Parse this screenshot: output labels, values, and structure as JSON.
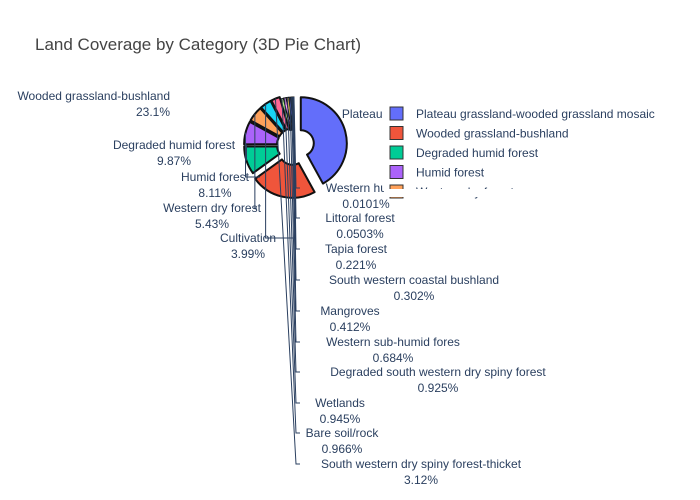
{
  "chart_data": {
    "type": "pie",
    "title": "Land Coverage by Category (3D Pie Chart)",
    "hole": true,
    "pulled_slices": true,
    "slices": [
      {
        "label": "Plateau grassland-wooded grassland mosaic",
        "percent": 42.1,
        "percent_text": "",
        "color": "#636efa",
        "in_legend": true,
        "outside_label": false,
        "inside_text": "Plateau grassland-woo"
      },
      {
        "label": "Wooded grassland-bushland",
        "percent": 23.1,
        "percent_text": "23.1%",
        "color": "#ef553b",
        "in_legend": true,
        "outside_label": true
      },
      {
        "label": "Degraded humid forest",
        "percent": 9.87,
        "percent_text": "9.87%",
        "color": "#00cc96",
        "in_legend": true,
        "outside_label": true
      },
      {
        "label": "Humid forest",
        "percent": 8.11,
        "percent_text": "8.11%",
        "color": "#ab63fa",
        "in_legend": true,
        "outside_label": true
      },
      {
        "label": "Western dry forest",
        "percent": 5.43,
        "percent_text": "5.43%",
        "color": "#ffa15a",
        "in_legend": true,
        "outside_label": true
      },
      {
        "label": "Cultivation",
        "percent": 3.99,
        "percent_text": "3.99%",
        "color": "#19d3f3",
        "in_legend": false,
        "outside_label": true
      },
      {
        "label": "South western dry spiny forest-thicket",
        "percent": 3.12,
        "percent_text": "3.12%",
        "color": "#ff6692",
        "in_legend": false,
        "outside_label": true
      },
      {
        "label": "Bare soil/rock",
        "percent": 0.966,
        "percent_text": "0.966%",
        "color": "#b6e880",
        "in_legend": false,
        "outside_label": true
      },
      {
        "label": "Wetlands",
        "percent": 0.945,
        "percent_text": "0.945%",
        "color": "#ff97ff",
        "in_legend": false,
        "outside_label": true
      },
      {
        "label": "Degraded south western dry spiny forest",
        "percent": 0.925,
        "percent_text": "0.925%",
        "color": "#fecb52",
        "in_legend": false,
        "outside_label": true
      },
      {
        "label": "Western sub-humid fores",
        "percent": 0.684,
        "percent_text": "0.684%",
        "color": "#636efa",
        "in_legend": false,
        "outside_label": true
      },
      {
        "label": "Mangroves",
        "percent": 0.412,
        "percent_text": "0.412%",
        "color": "#ef553b",
        "in_legend": false,
        "outside_label": true
      },
      {
        "label": "South western coastal bushland",
        "percent": 0.302,
        "percent_text": "0.302%",
        "color": "#00cc96",
        "in_legend": false,
        "outside_label": true
      },
      {
        "label": "Tapia forest",
        "percent": 0.221,
        "percent_text": "0.221%",
        "color": "#ab63fa",
        "in_legend": false,
        "outside_label": true
      },
      {
        "label": "Littoral forest",
        "percent": 0.0503,
        "percent_text": "0.0503%",
        "color": "#ffa15a",
        "in_legend": false,
        "outside_label": true
      },
      {
        "label": "Western humid",
        "percent": 0.0101,
        "percent_text": "0.0101%",
        "color": "#19d3f3",
        "in_legend": false,
        "outside_label": true
      }
    ],
    "legend": {
      "placement": "top-right",
      "entries": [
        {
          "text": "Plateau grassland-wooded grassland mosaic",
          "color": "#636efa"
        },
        {
          "text": "Wooded grassland-bushland",
          "color": "#ef553b"
        },
        {
          "text": "Degraded humid forest",
          "color": "#00cc96"
        },
        {
          "text": "Humid forest",
          "color": "#ab63fa"
        },
        {
          "text": "Western dry forest",
          "color": "#ffa15a"
        }
      ]
    },
    "label_lines": [
      {
        "slice": "Wooded grassland-bushland",
        "name_text": "Wooded grassland-bushland",
        "pct_text": "23.1%"
      },
      {
        "slice": "Degraded humid forest",
        "name_text": "Degraded humid forest",
        "pct_text": "9.87%"
      },
      {
        "slice": "Humid forest",
        "name_text": "Humid forest",
        "pct_text": "8.11%"
      },
      {
        "slice": "Western dry forest",
        "name_text": "Western dry forest",
        "pct_text": "5.43%"
      },
      {
        "slice": "Cultivation",
        "name_text": "Cultivation",
        "pct_text": "3.99%"
      },
      {
        "slice": "Western humid",
        "name_text": "Western humid",
        "pct_text": "0.0101%"
      },
      {
        "slice": "Littoral forest",
        "name_text": "Littoral forest",
        "pct_text": "0.0503%"
      },
      {
        "slice": "Tapia forest",
        "name_text": "Tapia forest",
        "pct_text": "0.221%"
      },
      {
        "slice": "South western coastal bushland",
        "name_text": "South western coastal bushland",
        "pct_text": "0.302%"
      },
      {
        "slice": "Mangroves",
        "name_text": "Mangroves",
        "pct_text": "0.412%"
      },
      {
        "slice": "Western sub-humid fores",
        "name_text": "Western sub-humid fores",
        "pct_text": "0.684%"
      },
      {
        "slice": "Degraded south western dry spiny forest",
        "name_text": "Degraded south western dry spiny forest",
        "pct_text": "0.925%"
      },
      {
        "slice": "Wetlands",
        "name_text": "Wetlands",
        "pct_text": "0.945%"
      },
      {
        "slice": "Bare soil/rock",
        "name_text": "Bare soil/rock",
        "pct_text": "0.966%"
      },
      {
        "slice": "South western dry spiny forest-thicket",
        "name_text": "South western dry spiny forest-thicket",
        "pct_text": "3.12%"
      }
    ]
  }
}
